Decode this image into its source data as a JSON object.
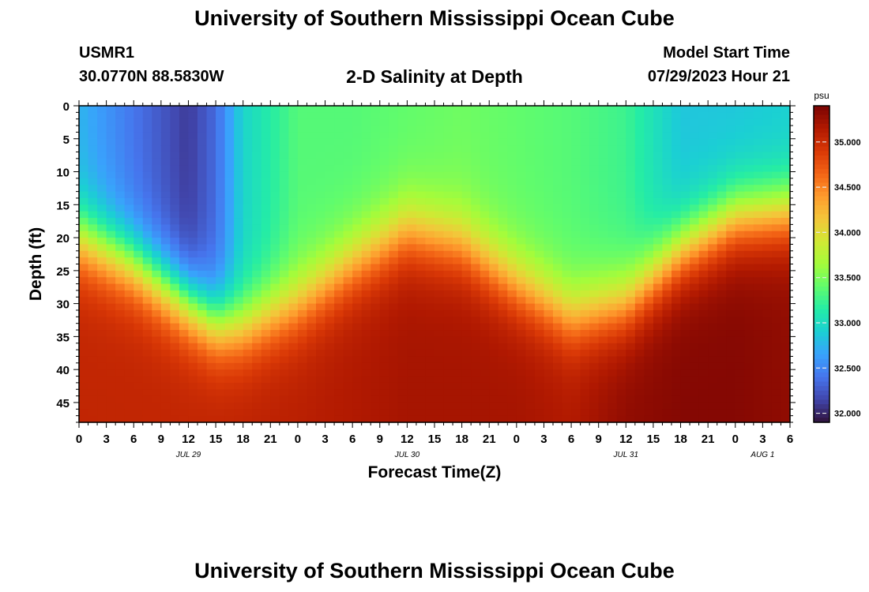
{
  "header": {
    "title": "University of Southern Mississippi Ocean Cube",
    "station_id": "USMR1",
    "station_coords": "30.0770N  88.5830W",
    "plot_title": "2-D Salinity at Depth",
    "run_label": "Model Start Time",
    "run_time": "07/29/2023 Hour 21"
  },
  "footer": {
    "title": "University of Southern Mississippi Ocean Cube"
  },
  "chart_data": {
    "type": "heatmap",
    "title": "2-D Salinity at Depth",
    "xlabel": "Forecast Time(Z)",
    "ylabel": "Depth (ft)",
    "x_tick_labels": [
      "0",
      "3",
      "6",
      "9",
      "12",
      "15",
      "18",
      "21",
      "0",
      "3",
      "6",
      "9",
      "12",
      "15",
      "18",
      "21",
      "0",
      "3",
      "6",
      "9",
      "12",
      "15",
      "18",
      "21",
      "0",
      "3",
      "6"
    ],
    "x_hours": [
      0,
      78
    ],
    "day_labels": [
      {
        "label": "JUL 29",
        "hour": 12
      },
      {
        "label": "JUL 30",
        "hour": 36
      },
      {
        "label": "JUL 31",
        "hour": 60
      },
      {
        "label": "AUG 1",
        "hour": 75
      }
    ],
    "y_ticks": [
      0,
      5,
      10,
      15,
      20,
      25,
      30,
      35,
      40,
      45
    ],
    "ylim": [
      0,
      48
    ],
    "y_inverted": true,
    "colorbar": {
      "unit": "psu",
      "min": 31.9,
      "max": 35.4,
      "ticks": [
        "32.000",
        "32.500",
        "33.000",
        "33.500",
        "34.000",
        "34.500",
        "35.000"
      ],
      "tick_values": [
        32.0,
        32.5,
        33.0,
        33.5,
        34.0,
        34.5,
        35.0
      ],
      "colors": [
        "#30123b",
        "#4145ab",
        "#4675ed",
        "#39a2fc",
        "#1bcfd4",
        "#24eca6",
        "#61fc6c",
        "#a4fc3b",
        "#d1e834",
        "#f3c63a",
        "#fe9b2d",
        "#f36315",
        "#d93806",
        "#b11901",
        "#7a0403"
      ]
    },
    "surface_hours": [
      0,
      6,
      12,
      15,
      18,
      24,
      30,
      36,
      42,
      48,
      54,
      60,
      63,
      66,
      72,
      78
    ],
    "surface_salinity": [
      32.75,
      32.4,
      32.1,
      32.35,
      32.95,
      33.35,
      33.35,
      33.4,
      33.45,
      33.4,
      33.35,
      33.25,
      33.05,
      32.85,
      32.85,
      32.9
    ],
    "halocline_hours": [
      0,
      6,
      12,
      15,
      18,
      24,
      30,
      36,
      42,
      48,
      54,
      60,
      66,
      72,
      78
    ],
    "halocline_depth_ft": [
      20,
      24,
      30,
      33,
      33.5,
      30,
      24,
      19,
      21,
      27,
      32,
      30,
      22,
      17,
      16
    ],
    "bottom_hours": [
      0,
      12,
      24,
      36,
      48,
      54,
      60,
      66,
      72,
      78
    ],
    "bottom_salinity": [
      35.05,
      35.05,
      35.1,
      35.2,
      35.2,
      35.15,
      35.3,
      35.35,
      35.35,
      35.3
    ]
  }
}
